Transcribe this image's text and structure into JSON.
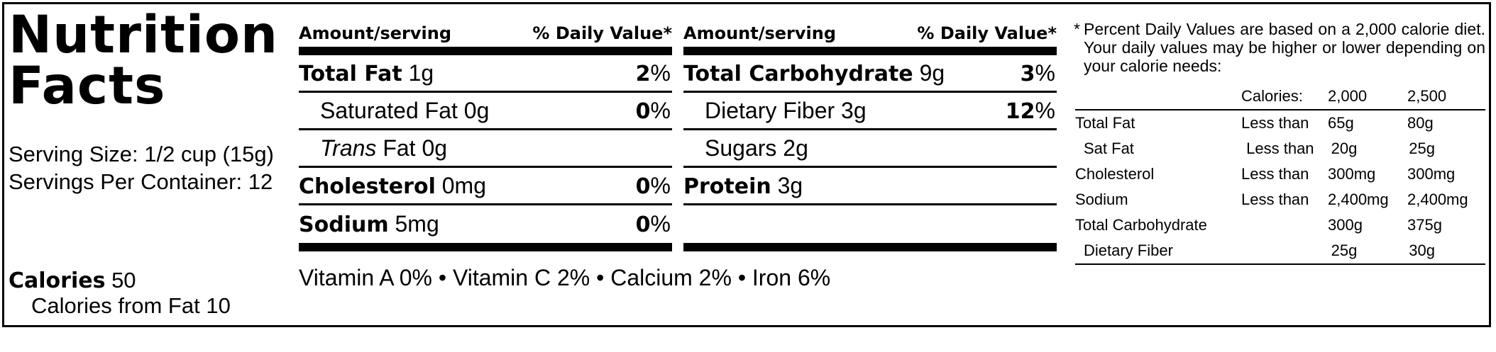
{
  "title_line1": "Nutrition",
  "title_line2": "Facts",
  "serving_size": "Serving Size: 1/2 cup (15g)",
  "servings_per_container": "Servings Per Container: 12",
  "calories_label": "Calories",
  "calories_value": "50",
  "calories_from_fat": "Calories from Fat 10",
  "table_header": {
    "amount_label": "Amount/serving",
    "dv_label": "% Daily Value*"
  },
  "left_nutrients": [
    {
      "name": "Total Fat",
      "amount": "1g",
      "pct": "2",
      "bold": true
    },
    {
      "name": "Saturated Fat",
      "amount": "0g",
      "pct": "0",
      "bold": false
    },
    {
      "name_italic": "Trans",
      "name": "Fat",
      "amount": "0g",
      "pct": "",
      "bold": false
    },
    {
      "name": "Cholesterol",
      "amount": "0mg",
      "pct": "0",
      "bold": true
    },
    {
      "name": "Sodium",
      "amount": "5mg",
      "pct": "0",
      "bold": true
    }
  ],
  "right_nutrients": [
    {
      "name": "Total Carbohydrate",
      "amount": "9g",
      "pct": "3",
      "bold": true
    },
    {
      "name": "Dietary Fiber",
      "amount": "3g",
      "pct": "12",
      "bold": false
    },
    {
      "name": "Sugars",
      "amount": "2g",
      "pct": "",
      "bold": false
    },
    {
      "name": "Protein",
      "amount": "3g",
      "pct": "",
      "bold": true
    },
    {
      "name": "",
      "amount": "",
      "pct": "",
      "bold": false
    }
  ],
  "percent_sign": "%",
  "vitamins": "Vitamin A 0% • Vitamin C 2% • Calcium 2% • Iron 6%",
  "footnote_star": "*",
  "footnote": "Percent Daily Values are based on a 2,000 calorie diet. Your daily values may be higher or lower depending on your calorie needs:",
  "dv_table": {
    "header": [
      "",
      "Calories:",
      "2,000",
      "2,500"
    ],
    "rows": [
      [
        "Total Fat",
        "Less than",
        "65g",
        "80g"
      ],
      [
        "Sat Fat",
        "Less than",
        "20g",
        "25g"
      ],
      [
        "Cholesterol",
        "Less than",
        "300mg",
        "300mg"
      ],
      [
        "Sodium",
        "Less than",
        "2,400mg",
        "2,400mg"
      ],
      [
        "Total Carbohydrate",
        "",
        "300g",
        "375g"
      ],
      [
        "Dietary Fiber",
        "",
        "25g",
        "30g"
      ]
    ]
  }
}
